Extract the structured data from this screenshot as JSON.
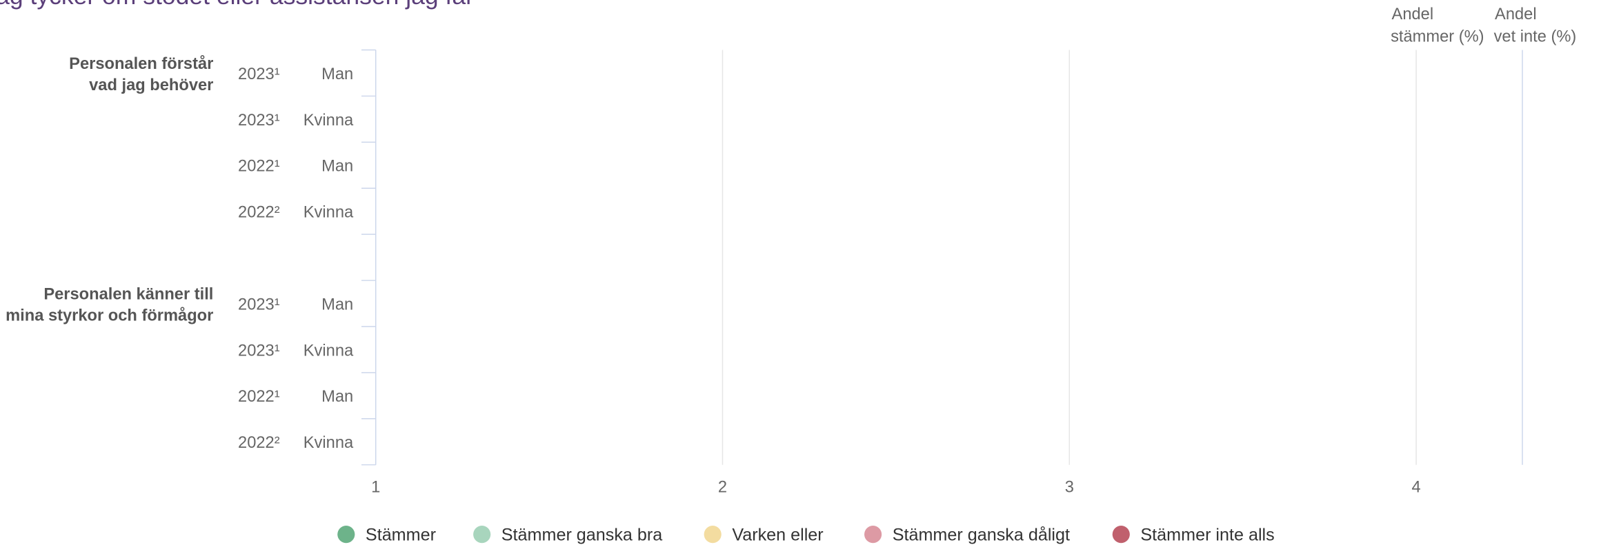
{
  "chart_data": {
    "type": "bar",
    "title": "ag tycker om stödet eller assistansen jag får",
    "groups": [
      {
        "label": [
          "Personalen förstår",
          "vad jag behöver"
        ],
        "rows": [
          {
            "year": "2023¹",
            "gender": "Man"
          },
          {
            "year": "2023¹",
            "gender": "Kvinna"
          },
          {
            "year": "2022¹",
            "gender": "Man"
          },
          {
            "year": "2022²",
            "gender": "Kvinna"
          }
        ]
      },
      {
        "label": [
          "Personalen känner till",
          "mina styrkor och förmågor"
        ],
        "rows": [
          {
            "year": "2023¹",
            "gender": "Man"
          },
          {
            "year": "2023¹",
            "gender": "Kvinna"
          },
          {
            "year": "2022¹",
            "gender": "Man"
          },
          {
            "year": "2022²",
            "gender": "Kvinna"
          }
        ]
      }
    ],
    "columns": [
      [
        "Andel",
        "stämmer (%)"
      ],
      [
        "Andel",
        "vet inte (%)"
      ]
    ],
    "xlim": [
      1,
      4
    ],
    "xticks": [
      1,
      2,
      3,
      4
    ],
    "grid": true,
    "series": [
      {
        "name": "Stämmer",
        "color": "#6db38a"
      },
      {
        "name": "Stämmer ganska bra",
        "color": "#a8d5bd"
      },
      {
        "name": "Varken eller",
        "color": "#f3dca0"
      },
      {
        "name": "Stämmer ganska dåligt",
        "color": "#dd9aa4"
      },
      {
        "name": "Stämmer inte alls",
        "color": "#c0606d"
      }
    ]
  }
}
